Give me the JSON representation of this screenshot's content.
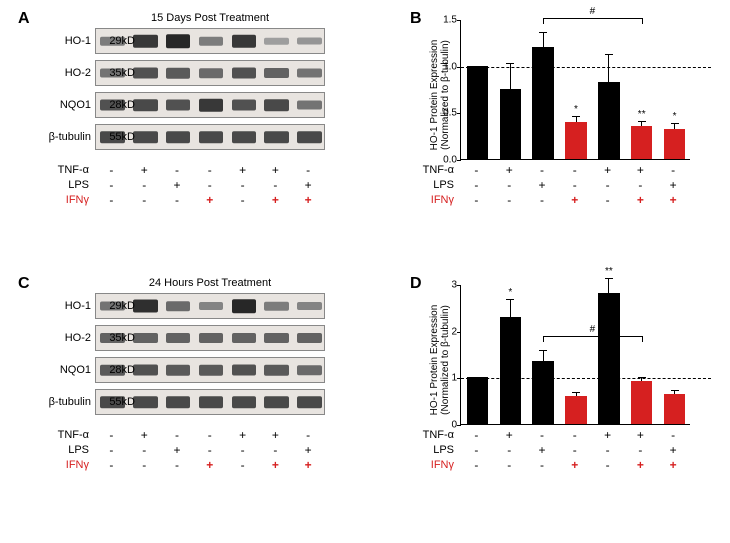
{
  "panels": {
    "A": {
      "label": "A",
      "title": "15 Days Post Treatment"
    },
    "B": {
      "label": "B"
    },
    "C": {
      "label": "C",
      "title": "24 Hours Post Treatment"
    },
    "D": {
      "label": "D"
    }
  },
  "blot_labels": {
    "ho1": "HO-1",
    "ho2": "HO-2",
    "nqo1": "NQO1",
    "btub": "β-tubulin"
  },
  "mw": {
    "ho1": "29kD",
    "ho2": "35kD",
    "nqo1": "28kD",
    "btub": "55kD"
  },
  "treatments": {
    "tnfa": "TNF-α",
    "lps": "LPS",
    "ifng": "IFNγ",
    "grid": [
      [
        "-",
        "+",
        "-",
        "-",
        "+",
        "+",
        "-"
      ],
      [
        "-",
        "-",
        "+",
        "-",
        "-",
        "-",
        "+"
      ],
      [
        "-",
        "-",
        "-",
        "+",
        "-",
        "+",
        "+"
      ]
    ],
    "plus_red": "+",
    "minus": "-"
  },
  "chartB": {
    "ylabel_l1": "HO-1 Protein Expression",
    "ylabel_l2": "(Normalized to β-tubulin)",
    "ymax": 1.5,
    "ticks": [
      "0.0",
      "0.5",
      "1.0",
      "1.5"
    ],
    "ref_line": 1.0,
    "bars": [
      {
        "v": 1.0,
        "err": 0.0,
        "color": "black",
        "sig": ""
      },
      {
        "v": 0.75,
        "err": 0.27,
        "color": "black",
        "sig": ""
      },
      {
        "v": 1.2,
        "err": 0.15,
        "color": "black",
        "sig": ""
      },
      {
        "v": 0.4,
        "err": 0.05,
        "color": "red",
        "sig": "*"
      },
      {
        "v": 0.83,
        "err": 0.28,
        "color": "black",
        "sig": ""
      },
      {
        "v": 0.35,
        "err": 0.05,
        "color": "red",
        "sig": "**"
      },
      {
        "v": 0.32,
        "err": 0.05,
        "color": "red",
        "sig": "*"
      }
    ],
    "bracket": {
      "from": 2,
      "to": 5,
      "label": "#"
    }
  },
  "chartD": {
    "ylabel_l1": "HO-1 Protein Expression",
    "ylabel_l2": "(Normalized to β-tubulin)",
    "ymax": 3.0,
    "ticks": [
      "0",
      "1",
      "2",
      "3"
    ],
    "ref_line": 1.0,
    "bars": [
      {
        "v": 1.0,
        "err": 0.0,
        "color": "black",
        "sig": ""
      },
      {
        "v": 2.3,
        "err": 0.35,
        "color": "black",
        "sig": "*"
      },
      {
        "v": 1.35,
        "err": 0.22,
        "color": "black",
        "sig": ""
      },
      {
        "v": 0.6,
        "err": 0.07,
        "color": "red",
        "sig": ""
      },
      {
        "v": 2.8,
        "err": 0.3,
        "color": "black",
        "sig": "**"
      },
      {
        "v": 0.92,
        "err": 0.07,
        "color": "red",
        "sig": ""
      },
      {
        "v": 0.65,
        "err": 0.05,
        "color": "red",
        "sig": ""
      }
    ],
    "bracket": {
      "from": 2,
      "to": 5,
      "label": "#"
    }
  },
  "blotA_intensity": {
    "ho1": [
      0.45,
      0.85,
      0.95,
      0.45,
      0.85,
      0.25,
      0.3
    ],
    "ho2": [
      0.5,
      0.7,
      0.65,
      0.55,
      0.7,
      0.6,
      0.5
    ],
    "nqo1": [
      0.7,
      0.75,
      0.7,
      0.85,
      0.7,
      0.75,
      0.5
    ],
    "btub": [
      0.75,
      0.75,
      0.75,
      0.75,
      0.75,
      0.75,
      0.75
    ]
  },
  "blotC_intensity": {
    "ho1": [
      0.5,
      0.9,
      0.55,
      0.4,
      0.95,
      0.45,
      0.4
    ],
    "ho2": [
      0.6,
      0.6,
      0.6,
      0.6,
      0.6,
      0.6,
      0.6
    ],
    "nqo1": [
      0.65,
      0.7,
      0.65,
      0.65,
      0.7,
      0.65,
      0.55
    ],
    "btub": [
      0.75,
      0.75,
      0.75,
      0.75,
      0.75,
      0.75,
      0.75
    ]
  }
}
